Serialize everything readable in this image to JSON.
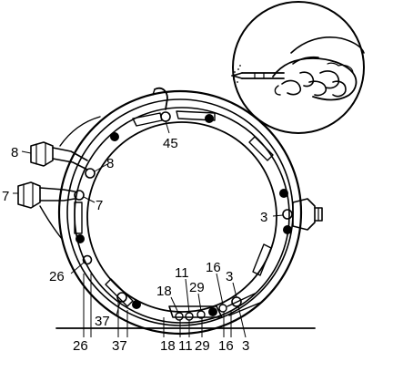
{
  "colors": {
    "ink": "#000000",
    "paper": "#ffffff"
  },
  "callouts": {
    "c45": "45",
    "c8_outer": "8",
    "c8_inner": "8",
    "c7_outer": "7",
    "c7_inner": "7",
    "c3_right": "3",
    "c26_upper": "26",
    "c37_upper": "37",
    "c18_upper": "18",
    "c11_upper": "11",
    "c29_upper": "29",
    "c16_upper": "16",
    "c3_upper": "3",
    "c26_bottom": "26",
    "c37_bottom": "37",
    "c18_bottom": "18",
    "c11_bottom": "11",
    "c29_bottom": "29",
    "c16_bottom": "16",
    "c3_bottom": "3"
  },
  "inset": {
    "icon": "hand-with-pen-icon"
  }
}
